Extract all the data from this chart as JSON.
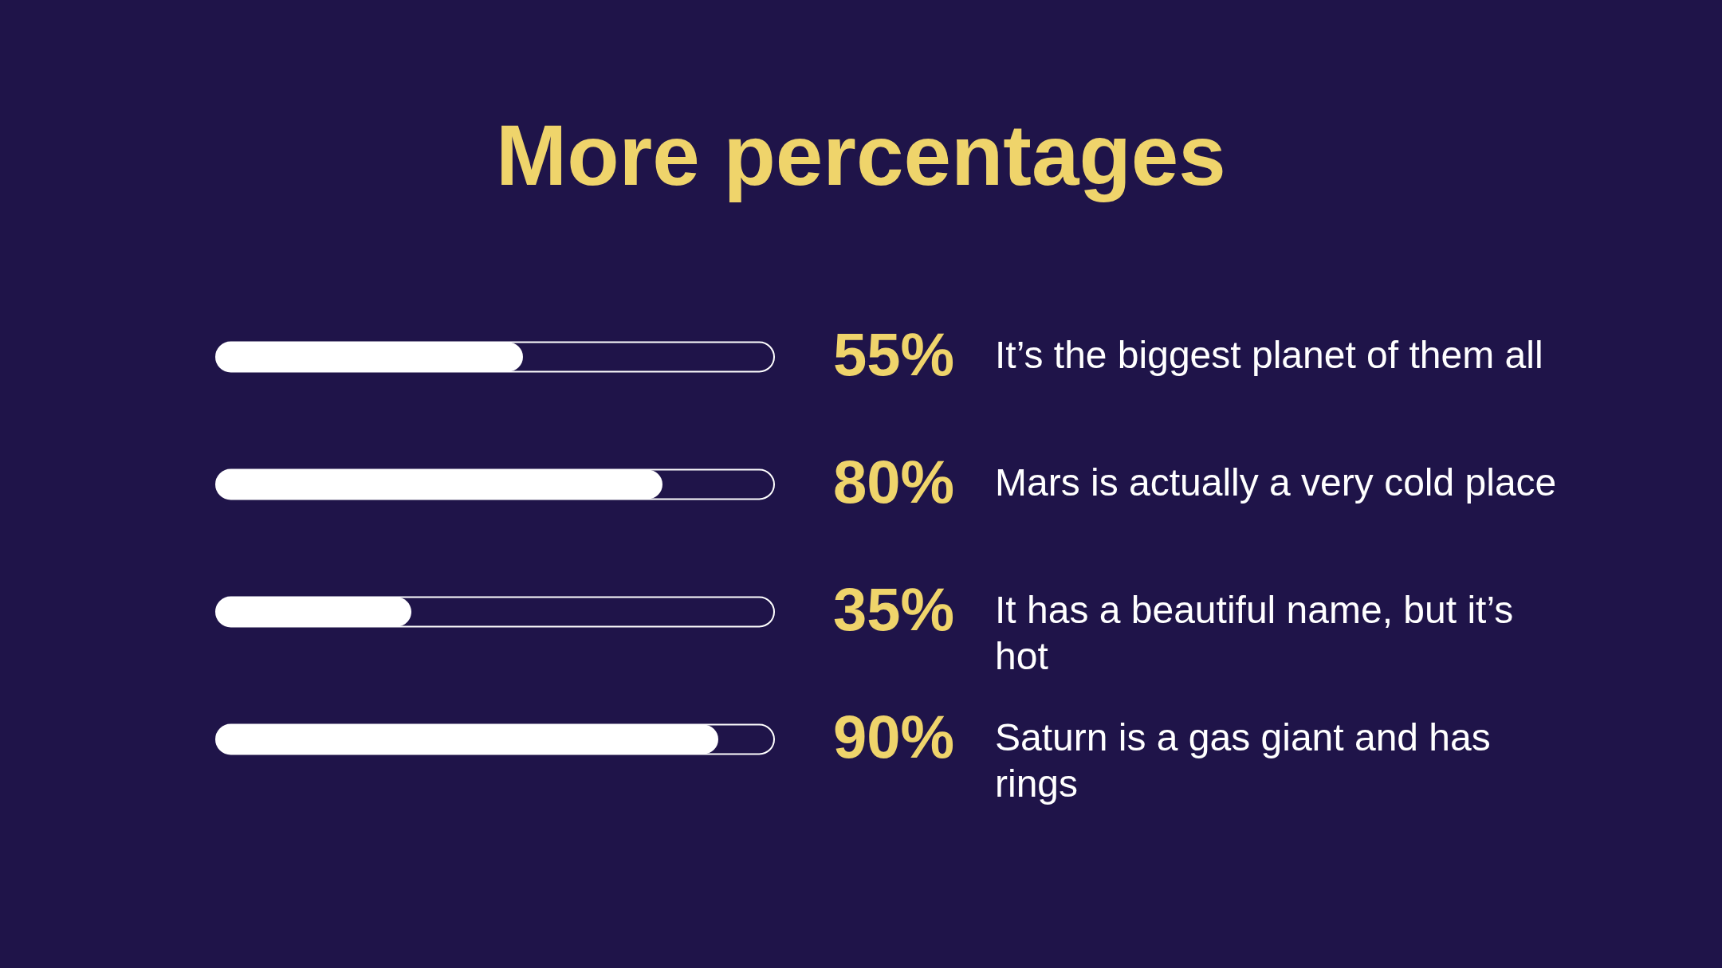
{
  "chart_data": {
    "type": "bar",
    "orientation": "horizontal",
    "title": "More percentages",
    "categories": [
      "It’s the biggest planet of them all",
      "Mars is actually a very cold place",
      "It has a beautiful name, but it’s hot",
      "Saturn is a gas giant and has rings"
    ],
    "values": [
      55,
      80,
      35,
      90
    ],
    "value_labels": [
      "55%",
      "80%",
      "35%",
      "90%"
    ],
    "color": "#ffffff",
    "xlim": [
      0,
      100
    ],
    "tick_labels": false
  }
}
